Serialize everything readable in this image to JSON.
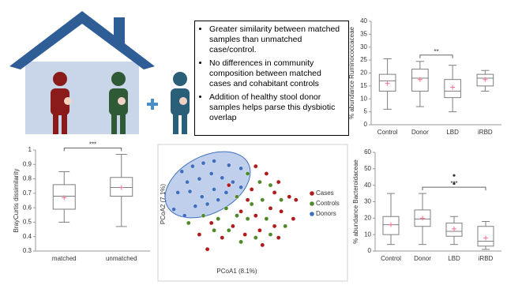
{
  "text_box": {
    "bullets": [
      "Greater similarity between matched samples than unmatched case/control.",
      "No differences in community composition between matched cases and cohabitant controls",
      "Addition of healthy stool donor samples helps parse this dysbiotic overlap"
    ]
  },
  "chart_data": [
    {
      "type": "box",
      "ylabel": "% abundance Ruminococcaceae",
      "categories": [
        "Control",
        "Donor",
        "LBD",
        "iRBD"
      ],
      "boxes": [
        {
          "whislo": 6,
          "q1": 13,
          "med": 17,
          "q3": 19.5,
          "whishi": 25.5,
          "mean": 16,
          "fliers": []
        },
        {
          "whislo": 7,
          "q1": 13,
          "med": 18,
          "q3": 21.5,
          "whishi": 24.5,
          "mean": 17.5,
          "fliers": []
        },
        {
          "whislo": 5,
          "q1": 10.5,
          "med": 13,
          "q3": 17.5,
          "whishi": 23,
          "mean": 14.5,
          "fliers": []
        },
        {
          "whislo": 13,
          "q1": 15,
          "med": 18,
          "q3": 19.5,
          "whishi": 21,
          "mean": 17.5,
          "fliers": []
        }
      ],
      "ylim": [
        0,
        40
      ],
      "yticks": [
        0,
        5,
        10,
        15,
        20,
        25,
        30,
        35,
        40
      ],
      "significance": {
        "label": "**",
        "between": [
          1,
          2
        ]
      },
      "box_color": "#7f7f7f",
      "mean_color": "#ff6f8f"
    },
    {
      "type": "box",
      "ylabel": "BrayCurtis dissimilarity",
      "categories": [
        "matched",
        "unmatched"
      ],
      "boxes": [
        {
          "whislo": 0.5,
          "q1": 0.59,
          "med": 0.68,
          "q3": 0.76,
          "whishi": 0.85,
          "mean": 0.67,
          "fliers": []
        },
        {
          "whislo": 0.47,
          "q1": 0.68,
          "med": 0.74,
          "q3": 0.81,
          "whishi": 0.97,
          "mean": 0.74,
          "fliers": []
        }
      ],
      "ylim": [
        0.3,
        1
      ],
      "yticks": [
        0.3,
        0.4,
        0.5,
        0.6,
        0.7,
        0.8,
        0.9,
        1
      ],
      "significance": {
        "label": "***",
        "between": [
          0,
          1
        ]
      },
      "box_color": "#7f7f7f",
      "mean_color": "#ff6f8f"
    },
    {
      "type": "scatter",
      "xlabel": "PCoA1 (8.1%)",
      "ylabel": "PCoA2 (7.1%)",
      "xlim": [
        0,
        100
      ],
      "ylim": [
        0,
        100
      ],
      "legend": "right",
      "series": [
        {
          "name": "Cases",
          "color": "#b01c1c",
          "x": [
            64,
            72,
            81,
            89,
            94,
            78,
            58,
            53,
            64,
            75,
            83,
            92,
            47,
            56,
            67,
            78,
            31,
            39,
            22,
            28,
            69,
            81,
            44,
            61
          ],
          "y": [
            86,
            79,
            71,
            57,
            54,
            61,
            54,
            43,
            39,
            46,
            43,
            36,
            29,
            21,
            25,
            29,
            32,
            18,
            21,
            7,
            11,
            18,
            68,
            64
          ]
        },
        {
          "name": "Controls",
          "color": "#4f8a2a",
          "x": [
            58,
            67,
            75,
            50,
            61,
            69,
            83,
            42,
            50,
            58,
            72,
            36,
            44,
            53,
            64,
            75,
            25,
            33,
            86,
            14
          ],
          "y": [
            79,
            71,
            68,
            57,
            50,
            54,
            54,
            46,
            39,
            36,
            36,
            36,
            25,
            14,
            18,
            21,
            39,
            25,
            29,
            32
          ]
        },
        {
          "name": "Donors",
          "color": "#3f6fc0",
          "x": [
            9,
            17,
            25,
            33,
            44,
            53,
            13,
            22,
            31,
            39,
            47,
            6,
            15,
            24,
            33,
            42,
            19,
            28,
            53,
            3,
            11,
            36
          ],
          "y": [
            81,
            86,
            89,
            91,
            87,
            84,
            71,
            74,
            79,
            75,
            71,
            61,
            62,
            57,
            64,
            61,
            48,
            50,
            66,
            45,
            39,
            54
          ]
        }
      ]
    },
    {
      "type": "box",
      "ylabel": "% abundance Bacteroidaceae",
      "categories": [
        "Control",
        "Donor",
        "LBD",
        "iRBD"
      ],
      "boxes": [
        {
          "whislo": 4,
          "q1": 10,
          "med": 16,
          "q3": 21,
          "whishi": 35,
          "mean": 16,
          "fliers": []
        },
        {
          "whislo": 4,
          "q1": 15,
          "med": 19.5,
          "q3": 25,
          "whishi": 35,
          "mean": 20,
          "fliers": []
        },
        {
          "whislo": 4,
          "q1": 9,
          "med": 12,
          "q3": 17,
          "whishi": 21,
          "mean": 13.5,
          "fliers": [
            46,
            41
          ]
        },
        {
          "whislo": 1,
          "q1": 3,
          "med": 6,
          "q3": 15,
          "whishi": 18,
          "mean": 8,
          "fliers": []
        }
      ],
      "ylim": [
        0,
        60
      ],
      "yticks": [
        0,
        10,
        20,
        30,
        40,
        50,
        60
      ],
      "significance": {
        "label": "***",
        "between": [
          1,
          3
        ]
      },
      "box_color": "#7f7f7f",
      "mean_color": "#ff6f8f"
    }
  ]
}
